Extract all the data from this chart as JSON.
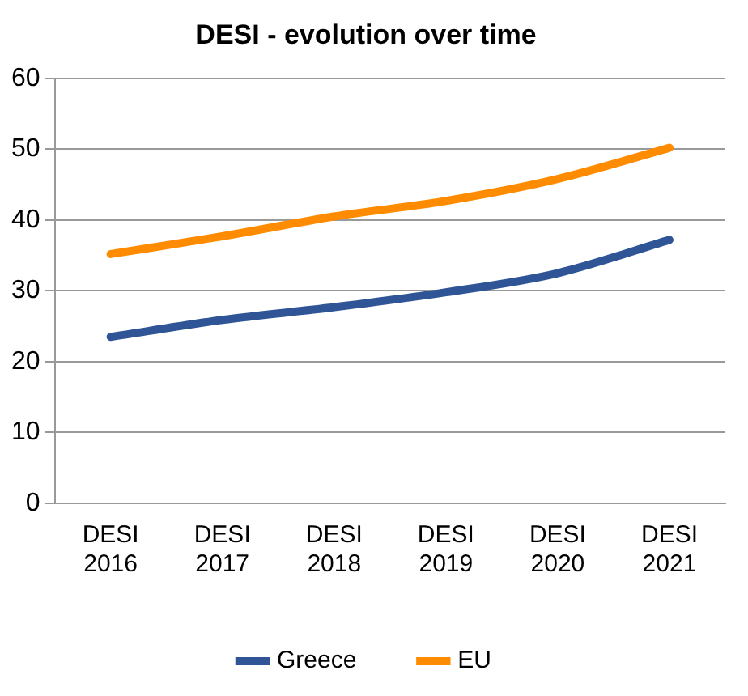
{
  "chart_data": {
    "type": "line",
    "title": "DESI - evolution over time",
    "categories": [
      "DESI 2016",
      "DESI 2017",
      "DESI 2018",
      "DESI 2019",
      "DESI 2020",
      "DESI 2021"
    ],
    "series": [
      {
        "name": "Greece",
        "color": "#2f5597",
        "values": [
          23.5,
          25.9,
          27.7,
          29.8,
          32.5,
          37.2
        ]
      },
      {
        "name": "EU",
        "color": "#ff8c00",
        "values": [
          35.2,
          37.7,
          40.5,
          42.7,
          45.8,
          50.2
        ]
      }
    ],
    "ylim": [
      0,
      60
    ],
    "yticks": [
      0,
      10,
      20,
      30,
      40,
      50,
      60
    ],
    "grid": "y",
    "legend": "bottom",
    "marker": "none",
    "line_style": "solid"
  }
}
